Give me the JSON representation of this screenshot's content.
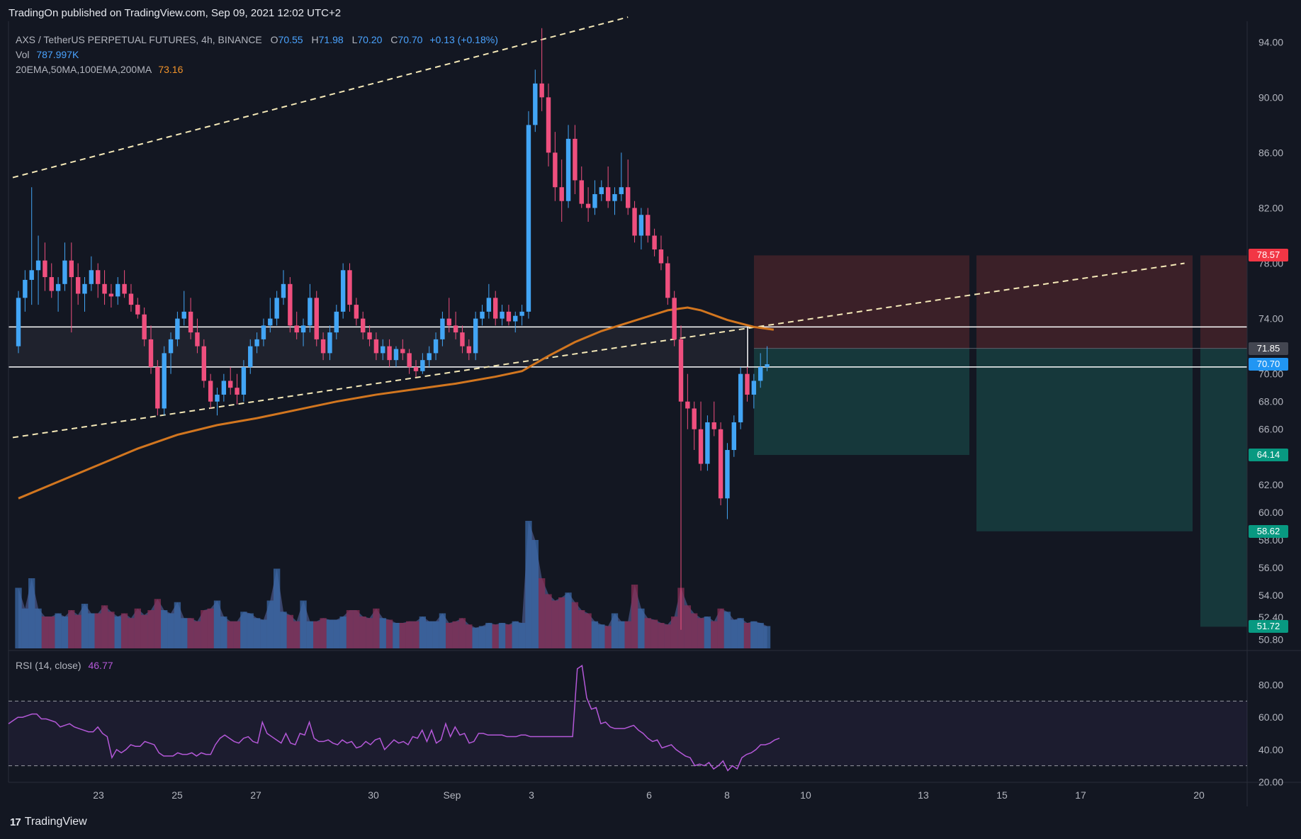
{
  "header": {
    "published": "TradingOn published on TradingView.com, Sep 09, 2021 12:02 UTC+2"
  },
  "legend": {
    "symbol": "AXS / TetherUS PERPETUAL FUTURES, 4h, BINANCE",
    "ohlc": {
      "o": "70.55",
      "h": "71.98",
      "l": "70.20",
      "c": "70.70",
      "change": "+0.13 (+0.18%)"
    },
    "vol_label": "Vol",
    "vol_value": "787.997K",
    "ma_label": "20EMA,50MA,100EMA,200MA",
    "ma_value": "73.16"
  },
  "rsi_legend": {
    "label": "RSI (14, close)",
    "value": "46.77"
  },
  "footer": {
    "brand": "TradingView",
    "logo": "17"
  },
  "colors": {
    "up": "#42a5f5",
    "down": "#ef4f7e",
    "ma": "#d2761f",
    "stop_zone": "#3d2129",
    "target_zone": "#163a3d",
    "rsi": "#b458d8"
  },
  "chart_data": {
    "type": "candlestick",
    "timeframe": "4h",
    "ylim": [
      50.0,
      95.5
    ],
    "y_ticks": [
      "94.00",
      "90.00",
      "86.00",
      "82.00",
      "78.00",
      "74.00",
      "70.00",
      "68.00",
      "66.00",
      "64.00",
      "62.00",
      "60.00",
      "58.00",
      "56.00",
      "54.00",
      "52.40",
      "50.80"
    ],
    "x_ticks": [
      "23",
      "25",
      "27",
      "30",
      "Sep",
      "3",
      "6",
      "8",
      "10",
      "13",
      "15",
      "17",
      "20"
    ],
    "price_badges": [
      {
        "label": "78.57",
        "color": "#f23645"
      },
      {
        "label": "71.85",
        "color": "#434651"
      },
      {
        "label": "70.70",
        "color": "#2196f3"
      },
      {
        "label": "64.14",
        "color": "#089981"
      },
      {
        "label": "58.62",
        "color": "#089981"
      },
      {
        "label": "51.72",
        "color": "#089981"
      }
    ],
    "horizontal_levels": [
      73.4,
      70.5
    ],
    "trade_setup": {
      "entry": 71.85,
      "stop": 78.57,
      "targets": [
        64.14,
        58.62,
        51.72
      ]
    },
    "candles": [
      [
        72.0,
        76.0,
        71.5,
        75.5
      ],
      [
        75.5,
        77.5,
        74.5,
        76.8
      ],
      [
        76.8,
        83.5,
        75.0,
        77.5
      ],
      [
        77.5,
        80.0,
        75.0,
        78.2
      ],
      [
        78.2,
        79.5,
        76.0,
        77.0
      ],
      [
        77.0,
        78.0,
        75.5,
        76.0
      ],
      [
        76.0,
        77.0,
        74.5,
        76.5
      ],
      [
        76.5,
        79.5,
        76.0,
        78.2
      ],
      [
        78.2,
        79.5,
        73.0,
        77.0
      ],
      [
        77.0,
        78.0,
        75.0,
        75.8
      ],
      [
        75.8,
        77.0,
        74.5,
        76.5
      ],
      [
        76.5,
        78.5,
        76.0,
        77.5
      ],
      [
        77.5,
        78.0,
        75.5,
        76.5
      ],
      [
        76.5,
        77.5,
        75.0,
        75.8
      ],
      [
        75.8,
        76.5,
        74.8,
        75.6
      ],
      [
        75.6,
        77.0,
        75.0,
        76.5
      ],
      [
        76.5,
        77.5,
        75.5,
        75.8
      ],
      [
        75.8,
        76.5,
        74.5,
        75.0
      ],
      [
        75.0,
        75.5,
        74.0,
        74.3
      ],
      [
        74.3,
        74.8,
        72.0,
        72.5
      ],
      [
        72.5,
        73.5,
        70.0,
        70.5
      ],
      [
        70.5,
        71.0,
        67.0,
        67.5
      ],
      [
        67.5,
        72.0,
        67.0,
        71.5
      ],
      [
        71.5,
        73.0,
        70.0,
        72.5
      ],
      [
        72.5,
        74.5,
        72.0,
        74.0
      ],
      [
        74.0,
        76.0,
        73.5,
        74.5
      ],
      [
        74.5,
        75.5,
        72.5,
        73.0
      ],
      [
        73.0,
        74.0,
        71.5,
        72.0
      ],
      [
        72.0,
        72.5,
        69.0,
        69.5
      ],
      [
        69.5,
        70.0,
        67.5,
        68.0
      ],
      [
        68.0,
        69.0,
        67.0,
        68.5
      ],
      [
        68.5,
        70.0,
        68.0,
        69.5
      ],
      [
        69.5,
        70.5,
        68.5,
        69.0
      ],
      [
        69.0,
        70.0,
        67.8,
        68.5
      ],
      [
        68.5,
        71.0,
        68.0,
        70.5
      ],
      [
        70.5,
        72.5,
        70.0,
        72.0
      ],
      [
        72.0,
        73.0,
        71.5,
        72.5
      ],
      [
        72.5,
        74.0,
        72.0,
        73.5
      ],
      [
        73.5,
        75.5,
        73.0,
        74.0
      ],
      [
        74.0,
        76.0,
        73.5,
        75.5
      ],
      [
        75.5,
        77.5,
        75.0,
        76.5
      ],
      [
        76.5,
        77.0,
        73.0,
        73.5
      ],
      [
        73.5,
        74.5,
        72.5,
        73.0
      ],
      [
        73.0,
        74.0,
        72.0,
        73.5
      ],
      [
        73.5,
        76.5,
        73.0,
        75.5
      ],
      [
        75.5,
        76.0,
        72.0,
        72.5
      ],
      [
        72.5,
        73.0,
        71.0,
        71.5
      ],
      [
        71.5,
        73.5,
        71.0,
        73.0
      ],
      [
        73.0,
        75.0,
        72.5,
        74.5
      ],
      [
        74.5,
        78.0,
        74.0,
        77.5
      ],
      [
        77.5,
        78.0,
        74.5,
        75.0
      ],
      [
        75.0,
        75.5,
        73.5,
        74.0
      ],
      [
        74.0,
        74.5,
        72.5,
        73.0
      ],
      [
        73.0,
        73.5,
        72.0,
        72.5
      ],
      [
        72.5,
        73.0,
        71.0,
        71.5
      ],
      [
        71.5,
        72.5,
        71.0,
        72.0
      ],
      [
        72.0,
        72.5,
        70.5,
        71.0
      ],
      [
        71.0,
        72.0,
        70.5,
        71.8
      ],
      [
        71.8,
        72.5,
        71.0,
        71.5
      ],
      [
        71.5,
        71.8,
        70.0,
        70.5
      ],
      [
        70.5,
        71.0,
        69.8,
        70.2
      ],
      [
        70.2,
        71.5,
        70.0,
        71.0
      ],
      [
        71.0,
        72.0,
        70.5,
        71.5
      ],
      [
        71.5,
        73.0,
        71.0,
        72.5
      ],
      [
        72.5,
        74.5,
        72.0,
        74.0
      ],
      [
        74.0,
        75.5,
        73.0,
        73.5
      ],
      [
        73.5,
        74.5,
        72.5,
        73.0
      ],
      [
        73.0,
        73.5,
        71.5,
        72.0
      ],
      [
        72.0,
        72.5,
        71.0,
        71.5
      ],
      [
        71.5,
        74.5,
        71.0,
        74.0
      ],
      [
        74.0,
        75.0,
        73.5,
        74.5
      ],
      [
        74.5,
        76.5,
        74.0,
        75.5
      ],
      [
        75.5,
        76.0,
        73.5,
        74.0
      ],
      [
        74.0,
        75.0,
        73.5,
        74.5
      ],
      [
        74.5,
        75.0,
        73.5,
        73.8
      ],
      [
        73.8,
        74.5,
        73.0,
        74.2
      ],
      [
        74.2,
        75.0,
        73.5,
        74.5
      ],
      [
        74.5,
        89.0,
        74.0,
        88.0
      ],
      [
        88.0,
        92.0,
        87.5,
        91.0
      ],
      [
        91.0,
        95.0,
        89.0,
        90.0
      ],
      [
        90.0,
        91.0,
        85.0,
        86.0
      ],
      [
        86.0,
        87.5,
        82.5,
        83.5
      ],
      [
        83.5,
        85.5,
        81.0,
        82.5
      ],
      [
        82.5,
        88.0,
        82.0,
        87.0
      ],
      [
        87.0,
        88.0,
        83.0,
        84.0
      ],
      [
        84.0,
        85.0,
        82.0,
        82.3
      ],
      [
        82.3,
        83.5,
        81.0,
        82.0
      ],
      [
        82.0,
        84.0,
        81.5,
        83.0
      ],
      [
        83.0,
        84.0,
        82.5,
        83.5
      ],
      [
        83.5,
        85.0,
        82.0,
        82.5
      ],
      [
        82.5,
        83.5,
        81.5,
        83.0
      ],
      [
        83.0,
        86.0,
        82.5,
        83.5
      ],
      [
        83.5,
        85.5,
        81.5,
        82.0
      ],
      [
        82.0,
        82.5,
        79.5,
        80.0
      ],
      [
        80.0,
        82.0,
        79.0,
        81.5
      ],
      [
        81.5,
        82.0,
        79.5,
        80.0
      ],
      [
        80.0,
        80.5,
        78.5,
        79.0
      ],
      [
        79.0,
        80.0,
        77.5,
        78.0
      ],
      [
        78.0,
        78.5,
        75.0,
        75.5
      ],
      [
        75.5,
        76.0,
        72.0,
        72.5
      ],
      [
        72.5,
        73.5,
        51.5,
        68.0
      ],
      [
        68.0,
        70.0,
        66.0,
        67.5
      ],
      [
        67.5,
        68.0,
        64.5,
        66.0
      ],
      [
        66.0,
        68.0,
        63.0,
        63.5
      ],
      [
        63.5,
        67.0,
        63.0,
        66.5
      ],
      [
        66.5,
        68.0,
        65.5,
        66.0
      ],
      [
        66.0,
        66.5,
        60.5,
        61.0
      ],
      [
        61.0,
        65.0,
        59.5,
        64.5
      ],
      [
        64.5,
        67.0,
        64.0,
        66.5
      ],
      [
        66.5,
        70.5,
        66.0,
        70.0
      ],
      [
        70.0,
        70.5,
        68.0,
        68.5
      ],
      [
        68.5,
        70.0,
        67.5,
        69.5
      ],
      [
        69.5,
        71.5,
        69.0,
        70.5
      ],
      [
        70.5,
        72.0,
        70.2,
        70.7
      ]
    ],
    "ma_200": [
      [
        0,
        61.0
      ],
      [
        6,
        62.2
      ],
      [
        12,
        63.4
      ],
      [
        18,
        64.6
      ],
      [
        24,
        65.6
      ],
      [
        30,
        66.3
      ],
      [
        36,
        66.8
      ],
      [
        42,
        67.4
      ],
      [
        48,
        68.0
      ],
      [
        54,
        68.5
      ],
      [
        60,
        68.9
      ],
      [
        66,
        69.3
      ],
      [
        72,
        69.8
      ],
      [
        76,
        70.2
      ],
      [
        80,
        71.3
      ],
      [
        84,
        72.3
      ],
      [
        88,
        73.1
      ],
      [
        92,
        73.7
      ],
      [
        96,
        74.3
      ],
      [
        98,
        74.6
      ],
      [
        101,
        74.8
      ],
      [
        103,
        74.6
      ],
      [
        107,
        73.9
      ],
      [
        111,
        73.4
      ],
      [
        114,
        73.2
      ]
    ],
    "trend_upper": [
      [
        0,
        84.2
      ],
      [
        92,
        95.8
      ]
    ],
    "trend_lower": [
      [
        0,
        65.4
      ],
      [
        176,
        78.0
      ]
    ],
    "volume": [
      38,
      25,
      44,
      25,
      20,
      20,
      22,
      20,
      24,
      21,
      28,
      22,
      22,
      27,
      23,
      20,
      22,
      19,
      25,
      21,
      24,
      31,
      24,
      22,
      29,
      19,
      19,
      17,
      24,
      25,
      30,
      20,
      17,
      17,
      23,
      22,
      19,
      18,
      30,
      50,
      23,
      21,
      17,
      30,
      17,
      17,
      19,
      18,
      18,
      20,
      24,
      24,
      20,
      19,
      25,
      19,
      18,
      16,
      16,
      17,
      17,
      20,
      17,
      17,
      22,
      16,
      17,
      19,
      15,
      13,
      14,
      16,
      15,
      16,
      15,
      17,
      16,
      80,
      68,
      44,
      34,
      30,
      32,
      35,
      29,
      24,
      22,
      17,
      15,
      14,
      22,
      17,
      17,
      40,
      25,
      19,
      18,
      16,
      15,
      20,
      38,
      27,
      22,
      19,
      20,
      17,
      25,
      23,
      18,
      19,
      16,
      17,
      16,
      14
    ],
    "rsi": [
      56,
      58,
      60,
      60,
      61,
      62,
      62,
      59,
      59,
      58,
      57,
      54,
      55,
      56,
      54,
      53,
      52,
      51,
      51,
      54,
      50,
      48,
      35,
      40,
      38,
      40,
      43,
      42,
      42,
      45,
      44,
      43,
      38,
      36,
      36,
      36,
      38,
      37,
      37,
      38,
      36,
      38,
      37,
      37,
      43,
      47,
      49,
      47,
      45,
      44,
      47,
      48,
      45,
      44,
      57,
      50,
      48,
      46,
      44,
      50,
      44,
      43,
      50,
      49,
      57,
      47,
      45,
      45,
      46,
      44,
      43,
      46,
      44,
      45,
      41,
      42,
      45,
      43,
      46,
      47,
      40,
      43,
      46,
      44,
      45,
      43,
      48,
      47,
      52,
      45,
      52,
      44,
      46,
      56,
      48,
      54,
      49,
      50,
      44,
      45,
      50,
      50,
      49,
      49,
      49,
      49,
      48,
      48,
      48,
      49,
      49,
      48,
      48,
      48,
      48,
      48,
      48,
      48,
      48,
      48,
      48,
      90,
      92,
      72,
      65,
      66,
      56,
      57,
      54,
      53,
      53,
      53,
      54,
      55,
      52,
      50,
      47,
      45,
      46,
      41,
      42,
      43,
      40,
      38,
      36,
      35,
      30,
      31,
      30,
      32,
      28,
      30,
      33,
      27,
      30,
      28,
      35,
      37,
      38,
      40,
      43,
      43,
      44,
      46,
      47
    ],
    "rsi_ticks": [
      "80.00",
      "60.00",
      "40.00",
      "20.00"
    ],
    "rsi_bands": [
      70,
      30
    ]
  }
}
